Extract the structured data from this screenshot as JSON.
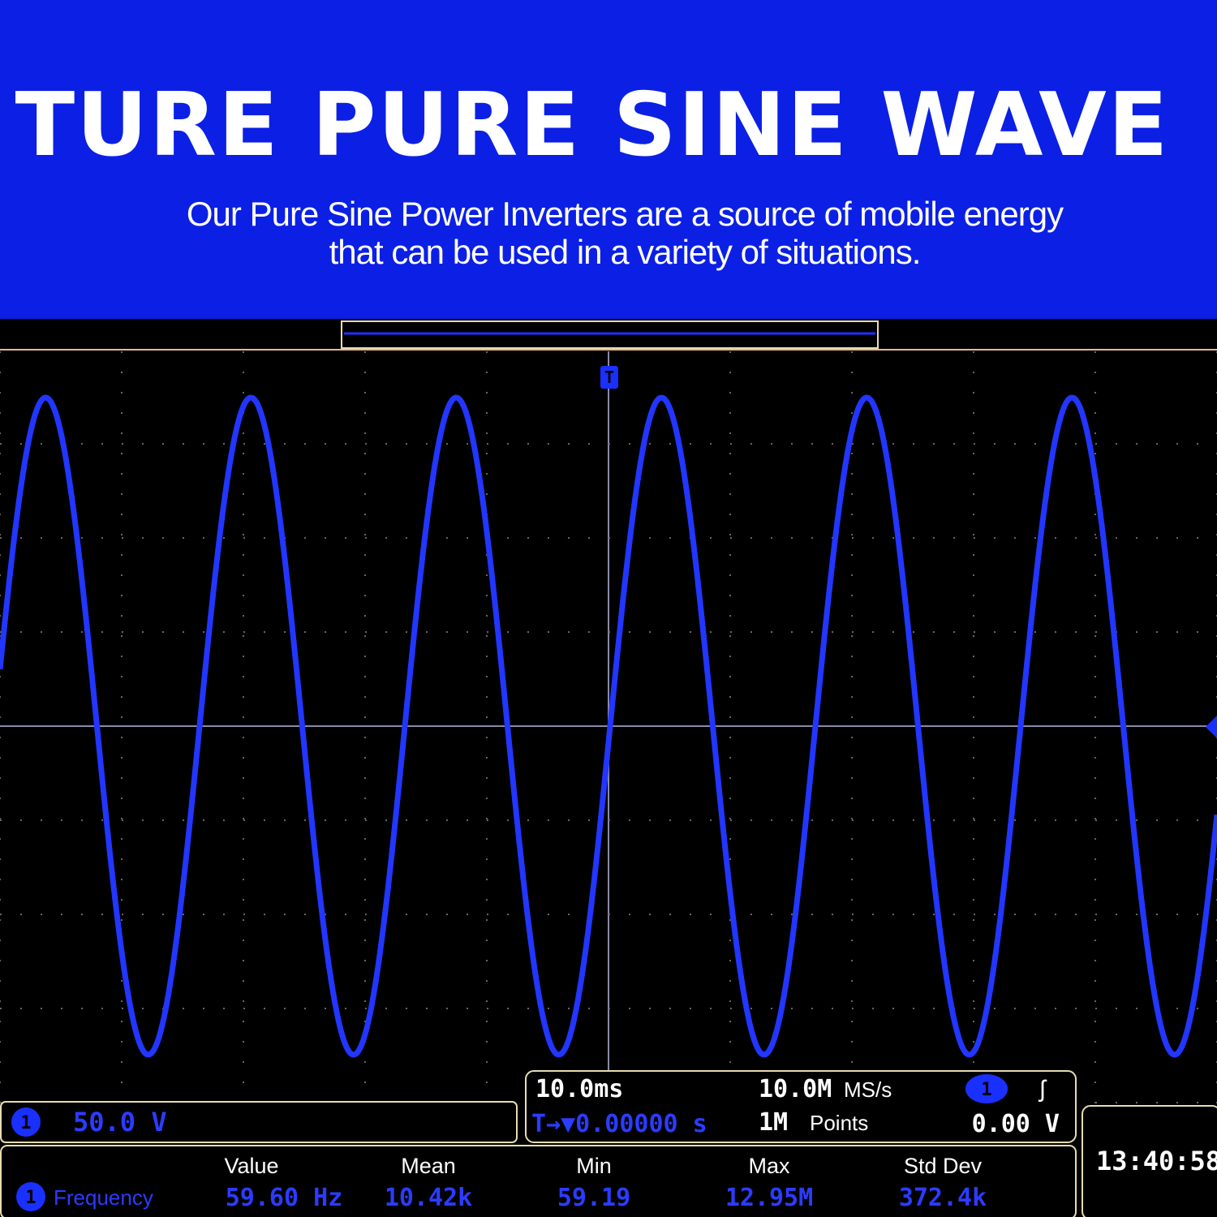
{
  "header": {
    "title": "TURE PURE SINE WAVE",
    "subtitle_lines": [
      "Our Pure Sine Power Inverters are a source of mobile energy",
      "that can be used in a variety of situations."
    ]
  },
  "scope": {
    "trigger_marker": "T",
    "channel": {
      "badge": "1",
      "scale": "50.0 V"
    },
    "timebase": {
      "time_per_div": "10.0ms",
      "trigger_position": "T→▼0.00000 s",
      "sample_rate": "10.0M",
      "sample_rate_unit": "MS/s",
      "record_length": "1M",
      "record_length_unit": "Points",
      "trigger_channel": "1",
      "trigger_slope": "ʃ",
      "trigger_level": "0.00 V"
    },
    "measurements": {
      "headers": [
        "Value",
        "Mean",
        "Min",
        "Max",
        "Std Dev"
      ],
      "row": {
        "badge": "1",
        "name": "Frequency",
        "values": [
          "59.60 Hz",
          "10.42k",
          "59.19",
          "12.95M",
          "372.4k"
        ]
      }
    },
    "clock": "13:40:58"
  }
}
